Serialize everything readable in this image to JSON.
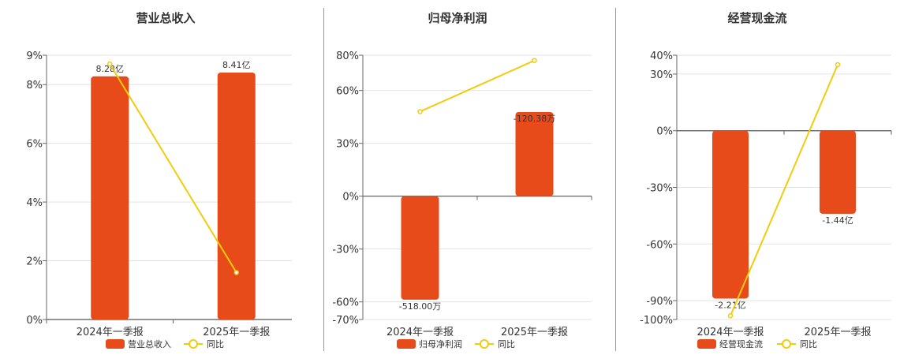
{
  "colors": {
    "bar": "#E84B1A",
    "line": "#F2CC0C",
    "grid": "#E3E3E3",
    "axis": "#666666",
    "zero": "#555555",
    "divider": "#999999"
  },
  "chart_data": [
    {
      "type": "bar",
      "title": "营业总收入",
      "categories": [
        "2024年一季报",
        "2025年一季报"
      ],
      "bar_series": {
        "name": "营业总收入",
        "values": [
          8.28,
          8.41
        ],
        "labels": [
          "8.28亿",
          "8.41亿"
        ]
      },
      "line_series": {
        "name": "同比",
        "values": [
          8.7,
          1.6
        ]
      },
      "yaxis": {
        "ticks": [
          0,
          2,
          4,
          6,
          8,
          9
        ],
        "tick_labels": [
          "0%",
          "2%",
          "4%",
          "6%",
          "8%",
          "9%"
        ],
        "ylim": [
          0,
          9
        ]
      },
      "bar_scale": {
        "min": 0,
        "max": 9
      },
      "grid": true,
      "legend": "bottom-center"
    },
    {
      "type": "bar",
      "title": "归母净利润",
      "categories": [
        "2024年一季报",
        "2025年一季报"
      ],
      "bar_series": {
        "name": "归母净利润",
        "values": [
          -518.0,
          -120.38
        ],
        "labels": [
          "-518.00万",
          "-120.38万"
        ]
      },
      "line_series": {
        "name": "同比",
        "values": [
          48,
          77
        ]
      },
      "yaxis": {
        "ticks": [
          -70,
          -60,
          -30,
          0,
          30,
          60,
          80
        ],
        "tick_labels": [
          "-70%",
          "-60%",
          "-30%",
          "0%",
          "30%",
          "60%",
          "80%"
        ],
        "ylim": [
          -70,
          80
        ]
      },
      "bar_scale": {
        "min": -560,
        "max": 0
      },
      "grid": true,
      "legend": "bottom-center"
    },
    {
      "type": "bar",
      "title": "经营现金流",
      "categories": [
        "2024年一季报",
        "2025年一季报"
      ],
      "bar_series": {
        "name": "经营现金流",
        "values": [
          -2.21,
          -1.44
        ],
        "labels": [
          "-2.21亿",
          "-1.44亿"
        ]
      },
      "line_series": {
        "name": "同比",
        "values": [
          -98,
          35
        ]
      },
      "yaxis": {
        "ticks": [
          -100,
          -90,
          -60,
          -30,
          0,
          30,
          40
        ],
        "tick_labels": [
          "-100%",
          "-90%",
          "-60%",
          "-30%",
          "0%",
          "30%",
          "40%"
        ],
        "ylim": [
          -100,
          40
        ]
      },
      "bar_scale": {
        "min": -2.4,
        "max": 0
      },
      "grid": true,
      "legend": "bottom-center"
    }
  ]
}
